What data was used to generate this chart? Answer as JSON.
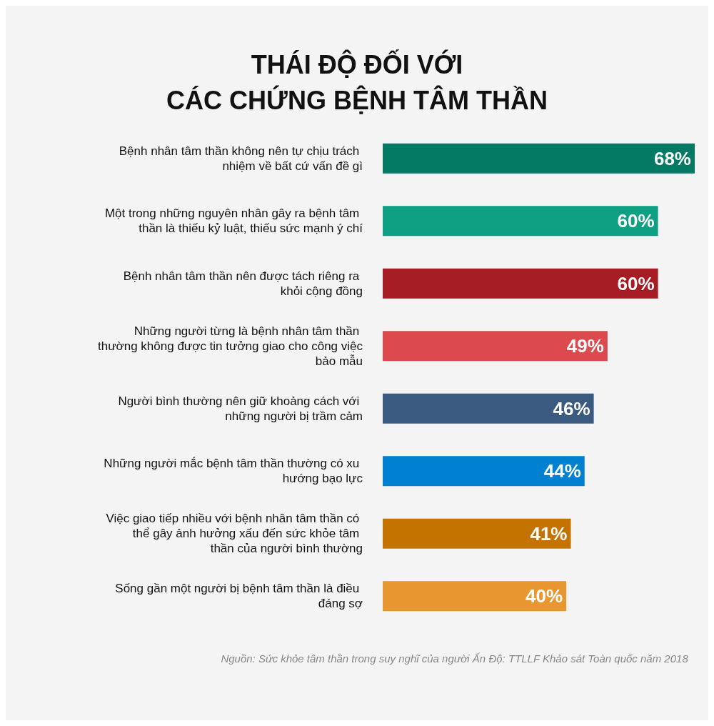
{
  "chart_data": {
    "type": "bar",
    "orientation": "horizontal",
    "title": "THÁI ĐỘ ĐỐI VỚI\nCÁC CHỨNG BỆNH TÂM THẦN",
    "categories": [
      "Bệnh nhân tâm thần không nên tự chịu trách nhiệm về bất cứ vấn đề gì",
      "Một trong những nguyên nhân gây ra bệnh tâm thần là thiếu kỷ luật, thiếu sức mạnh ý chí",
      "Bệnh nhân tâm thần nên được tách riêng ra khỏi cộng đồng",
      "Những người từng là bệnh nhân tâm thần thường không được tin tưởng giao cho công việc bảo mẫu",
      "Người bình thường nên giữ khoảng cách với những người bị trầm cảm",
      "Những người mắc bệnh tâm thần thường có xu hướng bạo lực",
      "Việc giao tiếp nhiều với bệnh nhân tâm thần có thể gây ảnh hưởng xấu đến sức khỏe tâm thần của người bình thường",
      "Sống gần một người bị bệnh tâm thần là điều đáng sợ"
    ],
    "values": [
      68,
      60,
      60,
      49,
      46,
      44,
      41,
      40
    ],
    "colors": [
      "#047a64",
      "#0fa083",
      "#a51c24",
      "#dc4a4d",
      "#3b5a80",
      "#0080d0",
      "#c47300",
      "#e8962f"
    ],
    "value_labels": [
      "68%",
      "60%",
      "60%",
      "49%",
      "46%",
      "44%",
      "41%",
      "40%"
    ],
    "annotations": [
      "Nguồn: Sức khỏe tâm thần trong suy nghĩ của người Ấn Độ: TTLLF Khảo sát Toàn quốc năm 2018"
    ]
  }
}
